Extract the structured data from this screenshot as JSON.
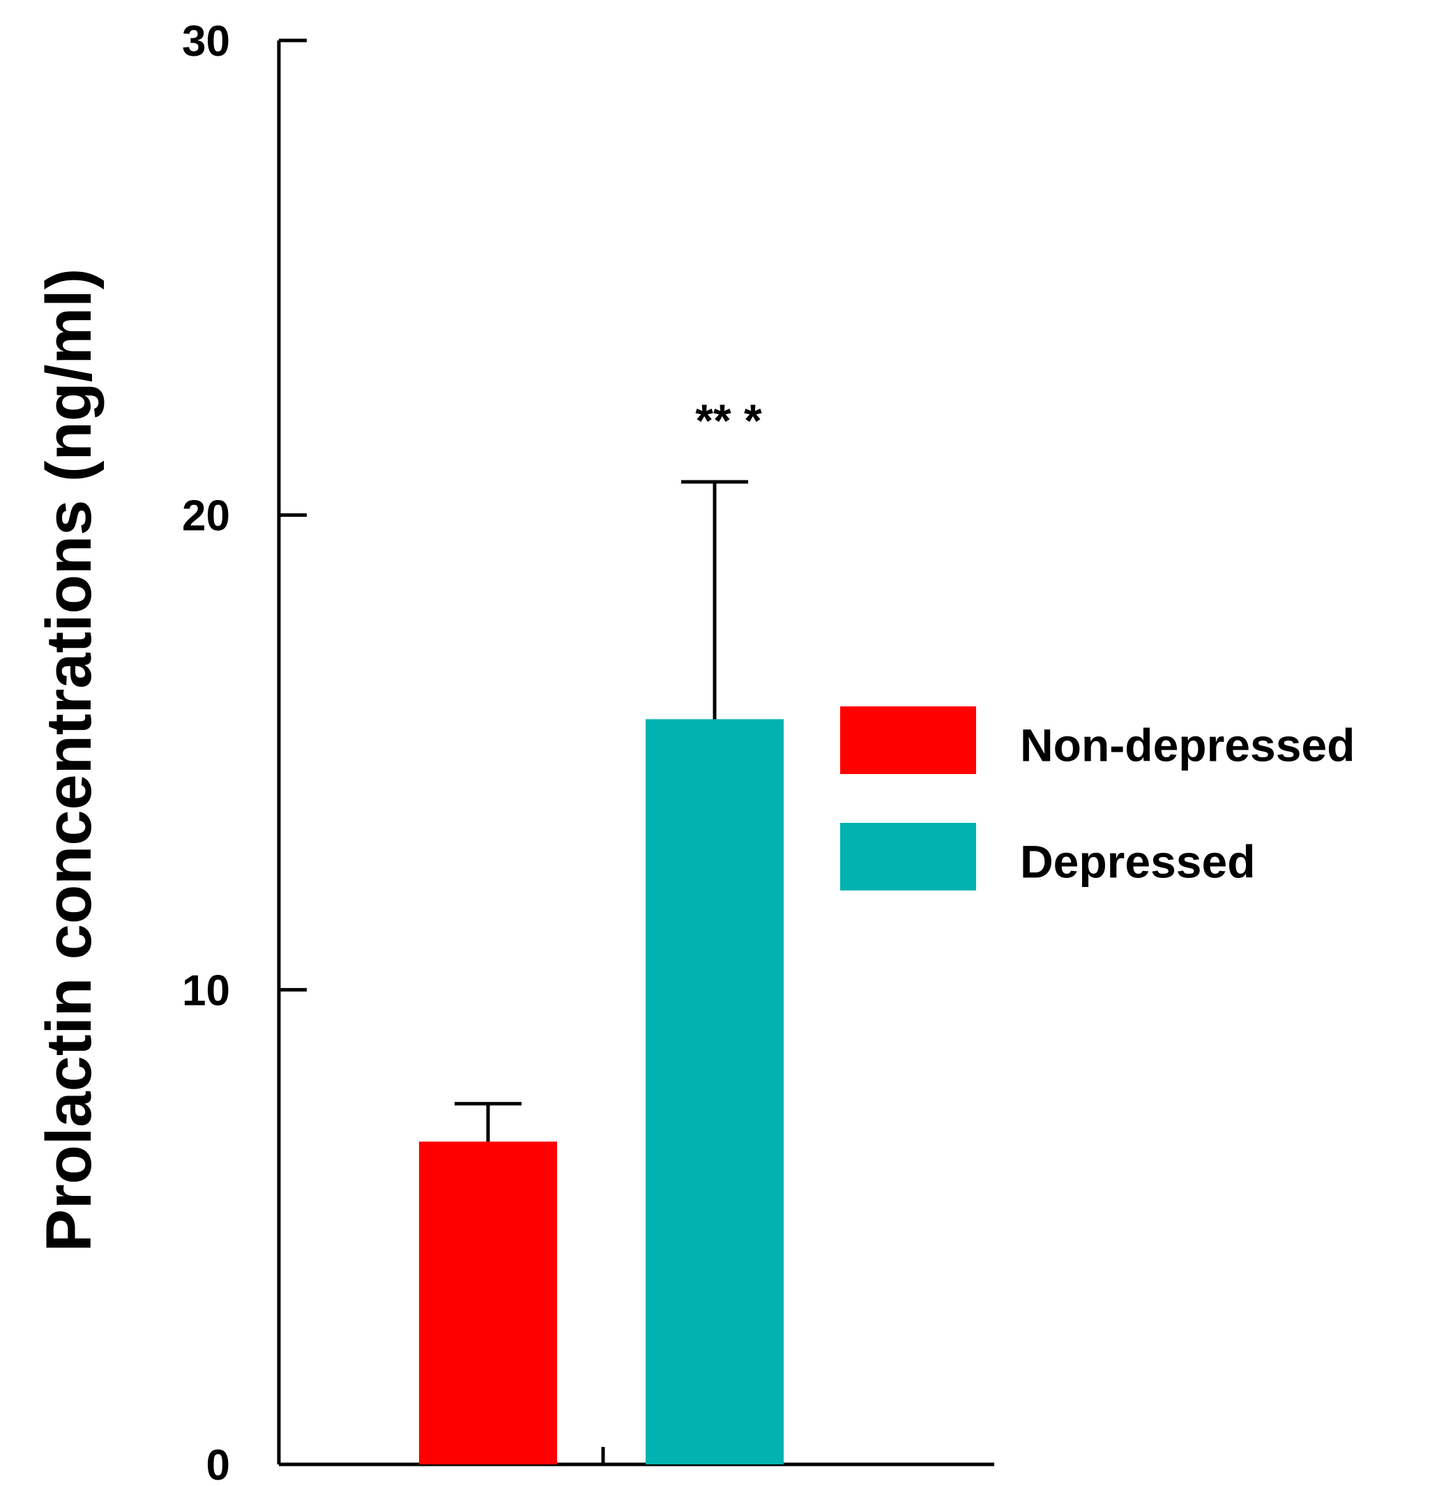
{
  "chart_data": {
    "type": "bar",
    "title": "",
    "xlabel": "",
    "ylabel": "Prolactin concentrations (ng/ml)",
    "ylim": [
      0,
      30
    ],
    "yticks": [
      0,
      10,
      20,
      30
    ],
    "ytick_labels": [
      "0",
      "10",
      "20",
      "30"
    ],
    "grid": false,
    "legend_position": "right",
    "series": [
      {
        "name": "Non-depressed",
        "value": 6.8,
        "error": 0.8,
        "color": "#ff0000"
      },
      {
        "name": "Depressed",
        "value": 15.7,
        "error": 5.0,
        "color": "#00b2b0"
      }
    ],
    "annotations": [
      {
        "text": "** *",
        "series": "Depressed"
      }
    ]
  }
}
